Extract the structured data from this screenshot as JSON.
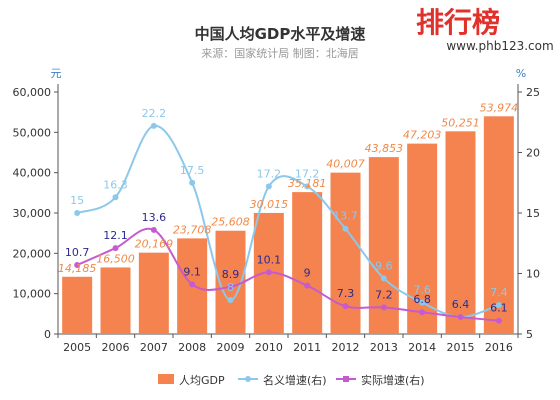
{
  "logo": {
    "text": "排行榜",
    "url": "www.phb123.com"
  },
  "chart_data": {
    "type": "bar+line",
    "title": "中国人均GDP水平及增速",
    "subtitle": "来源：国家统计局  制图：北海居",
    "left_axis_unit": "元",
    "right_axis_unit": "%",
    "categories": [
      "2005",
      "2006",
      "2007",
      "2008",
      "2009",
      "2010",
      "2011",
      "2012",
      "2013",
      "2014",
      "2015",
      "2016"
    ],
    "left_ylim": [
      0,
      60000
    ],
    "left_ticks": [
      0,
      10000,
      20000,
      30000,
      40000,
      50000,
      60000
    ],
    "left_tick_labels": [
      "0",
      "10,000",
      "20,000",
      "30,000",
      "40,000",
      "50,000",
      "60,000"
    ],
    "right_ylim": [
      5,
      25
    ],
    "right_ticks": [
      5,
      10,
      15,
      20,
      25
    ],
    "grid": false,
    "legend_position": "bottom",
    "series": [
      {
        "name": "人均GDP",
        "type": "bar",
        "axis": "left",
        "color": "#f4834f",
        "values": [
          14185,
          16500,
          20169,
          23708,
          25608,
          30015,
          35181,
          40007,
          43853,
          47203,
          50251,
          53974
        ],
        "labels": [
          "14,185",
          "16,500",
          "20,169",
          "23,708",
          "25,608",
          "30,015",
          "35,181",
          "40,007",
          "43,853",
          "47,203",
          "50,251",
          "53,974"
        ]
      },
      {
        "name": "名义增速(右)",
        "type": "line",
        "axis": "right",
        "color": "#8cc8ea",
        "values": [
          15,
          16.3,
          22.2,
          17.5,
          7.8,
          17.2,
          17.2,
          13.7,
          9.6,
          7.6,
          6.4,
          7.4
        ],
        "labels": [
          "15",
          "16.3",
          "22.2",
          "17.5",
          "8",
          "17.2",
          "17.2",
          "13.7",
          "9.6",
          "7.6",
          "6.4",
          "7.4"
        ]
      },
      {
        "name": "实际增速(右)",
        "type": "line",
        "axis": "right",
        "color": "#c65bcf",
        "values": [
          10.7,
          12.1,
          13.6,
          9.1,
          8.9,
          10.1,
          9,
          7.3,
          7.2,
          6.8,
          6.4,
          6.1
        ],
        "labels": [
          "10.7",
          "12.1",
          "13.6",
          "9.1",
          "8.9",
          "10.1",
          "9",
          "7.3",
          "7.2",
          "6.8",
          "6.4",
          "6.1"
        ]
      }
    ]
  }
}
